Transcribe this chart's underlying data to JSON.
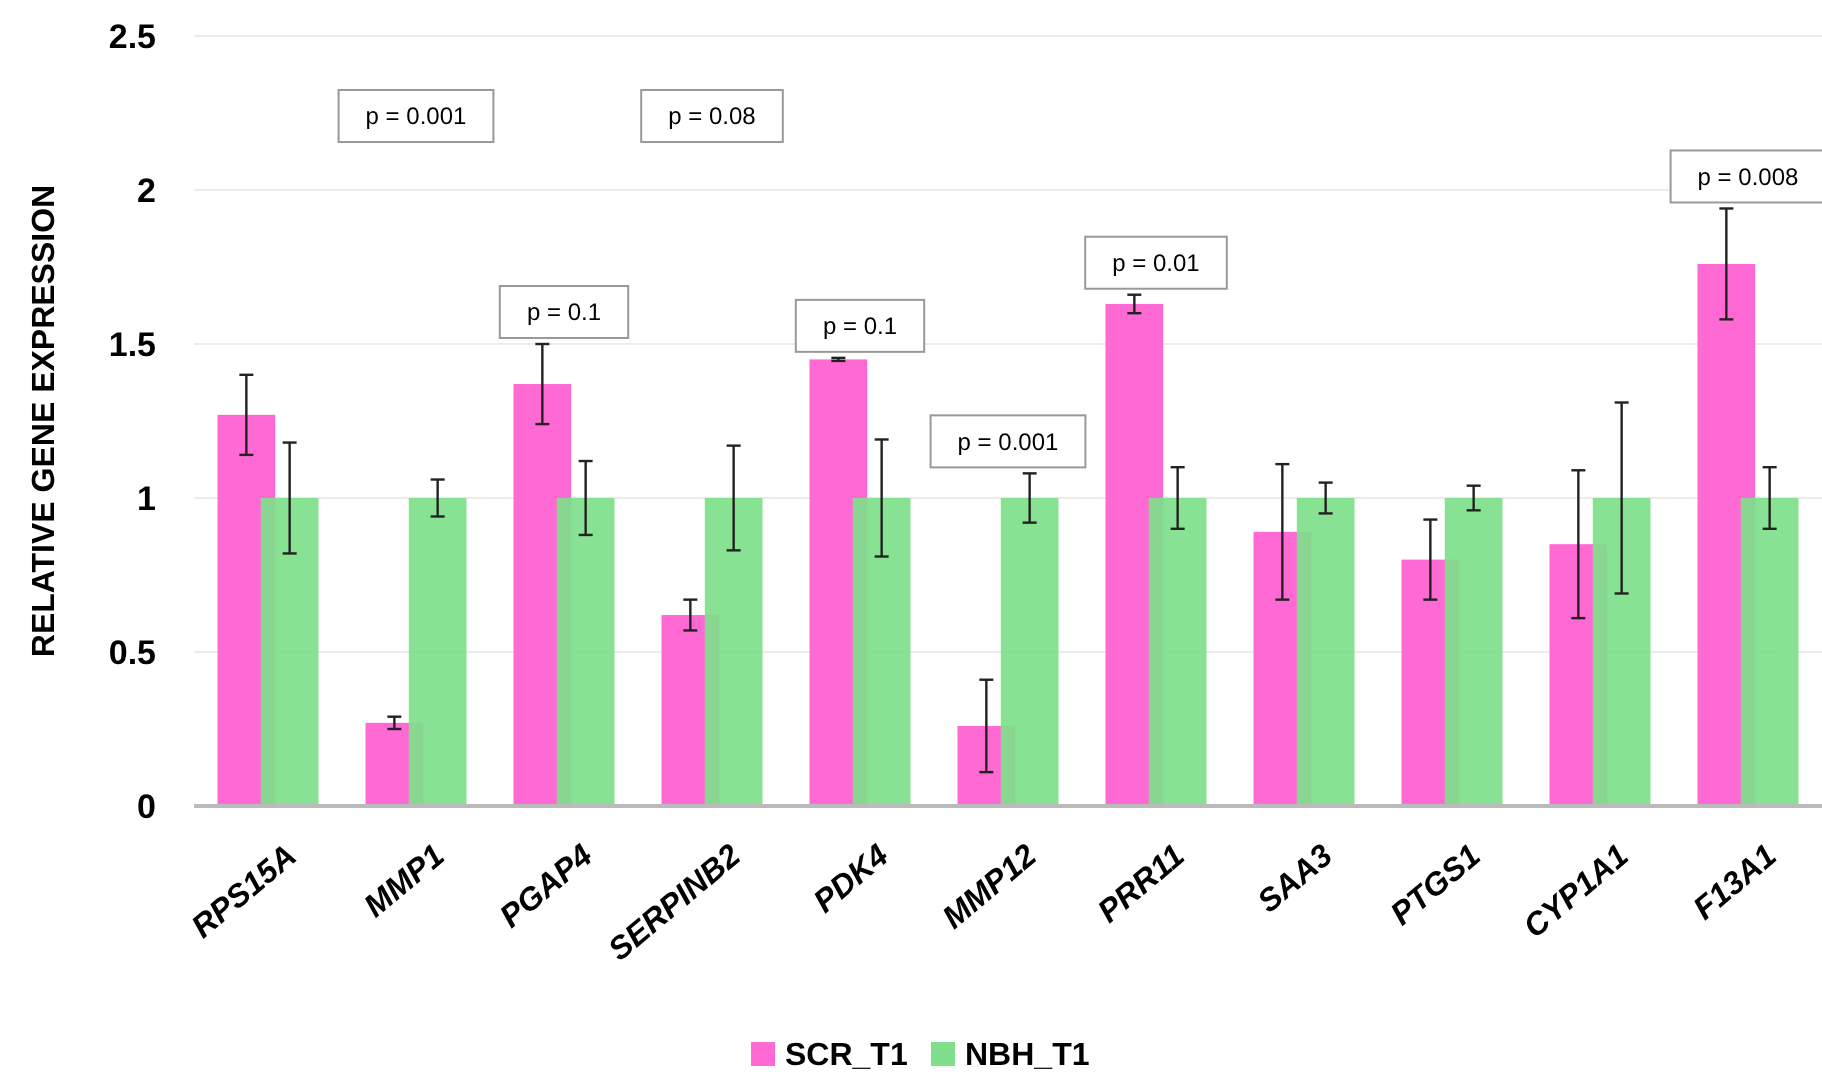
{
  "chart_data": {
    "type": "bar",
    "ylabel": "RELATIVE GENE EXPRESSION",
    "categories": [
      "RPS15A",
      "MMP1",
      "PGAP4",
      "SERPINB2",
      "PDK4",
      "MMP12",
      "PRR11",
      "SAA3",
      "PTGS1",
      "CYP1A1",
      "F13A1"
    ],
    "series": [
      {
        "name": "SCR_T1",
        "color": "#ff69d4",
        "values": [
          1.27,
          0.27,
          1.37,
          0.62,
          1.45,
          0.26,
          1.63,
          0.89,
          0.8,
          0.85,
          1.76
        ],
        "errors": [
          0.13,
          0.02,
          0.13,
          0.05,
          0.005,
          0.15,
          0.03,
          0.22,
          0.13,
          0.24,
          0.18
        ]
      },
      {
        "name": "NBH_T1",
        "color": "#7ee08a",
        "values": [
          1,
          1,
          1,
          1,
          1,
          1,
          1,
          1,
          1,
          1,
          1
        ],
        "errors": [
          0.18,
          0.06,
          0.12,
          0.17,
          0.19,
          0.08,
          0.1,
          0.05,
          0.04,
          0.31,
          0.1
        ]
      }
    ],
    "ylim": [
      0,
      2.5
    ],
    "yticks": [
      0,
      0.5,
      1,
      1.5,
      2,
      2.5
    ],
    "grid": "y",
    "legend": "bottom",
    "annotations": [
      "p = 0.001",
      {
        "text": "p = 0.1",
        "x": "PGAP4",
        "y": 1.5
      },
      "p = 0.08",
      {
        "text": "p = 0.1",
        "x": "PDK4",
        "y": 1.45
      },
      {
        "text": "p = 0.001",
        "x": "MMP12",
        "y": 1
      },
      {
        "text": "p = 0.01",
        "x": "PRR11",
        "y": 1.66
      },
      {
        "text": "p = 0.008",
        "x": "F13A1",
        "y": 1.94
      }
    ]
  }
}
